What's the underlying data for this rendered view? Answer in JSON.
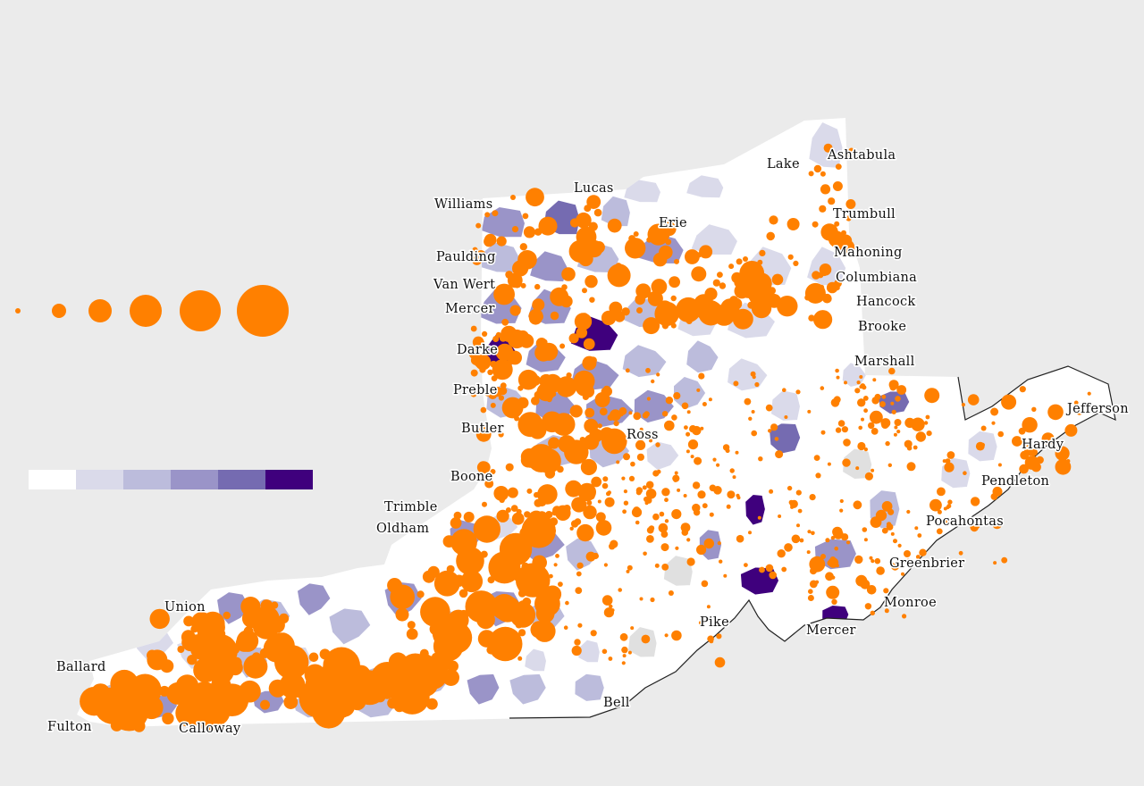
{
  "map": {
    "colors": {
      "background": "#ebebeb",
      "dot": "#ff8000",
      "scale": [
        "#ffffff",
        "#dadaea",
        "#bcbcdc",
        "#9a94c8",
        "#756bb1",
        "#3f007d"
      ],
      "missing": "#e0e0e0",
      "outline": "#222222"
    },
    "size_legend": {
      "steps": 6,
      "shape": "circle"
    },
    "color_legend": {
      "steps": 6
    },
    "labels": [
      "Ashtabula",
      "Lake",
      "Lucas",
      "Williams",
      "Erie",
      "Trumbull",
      "Mahoning",
      "Paulding",
      "Columbiana",
      "Van Wert",
      "Hancock",
      "Mercer",
      "Brooke",
      "Darke",
      "Marshall",
      "Preble",
      "Jefferson",
      "Butler",
      "Ross",
      "Hardy",
      "Boone",
      "Pendleton",
      "Trimble",
      "Pocahontas",
      "Oldham",
      "Greenbrier",
      "Union",
      "Monroe",
      "Pike",
      "Mercer",
      "Ballard",
      "Bell",
      "Fulton",
      "Calloway"
    ]
  }
}
